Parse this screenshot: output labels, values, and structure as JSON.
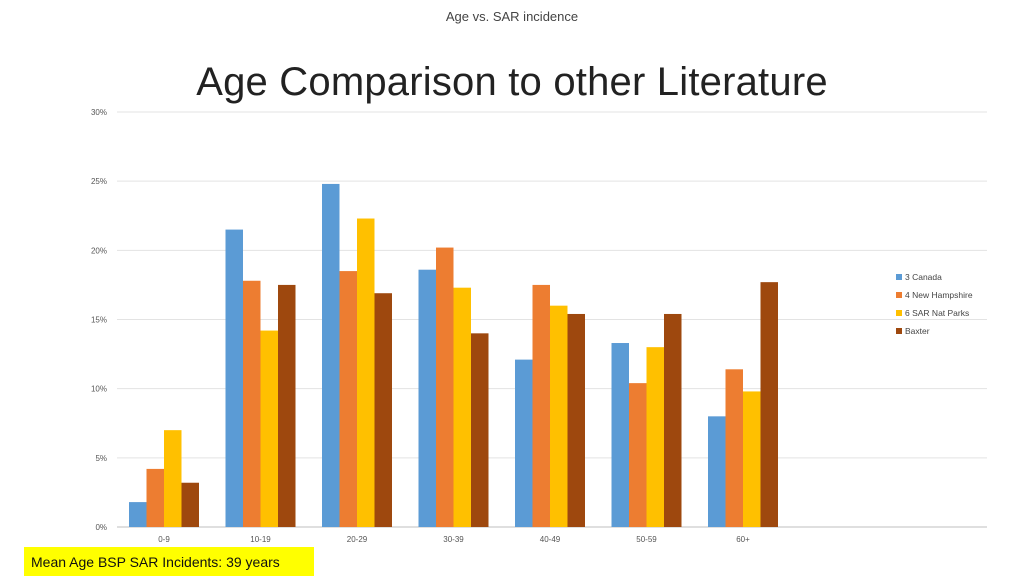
{
  "header": {
    "title": "Age vs. SAR incidence"
  },
  "slide": {
    "title": "Age Comparison to other Literature"
  },
  "footer": {
    "note": "Mean Age BSP SAR Incidents:  39 years"
  },
  "chart_data": {
    "type": "bar",
    "categories": [
      "0-9",
      "10-19",
      "20-29",
      "30-39",
      "40-49",
      "50-59",
      "60+"
    ],
    "series": [
      {
        "name": "3 Canada",
        "color": "#5b9bd5",
        "values": [
          1.8,
          21.5,
          24.8,
          18.6,
          12.1,
          13.3,
          8.0
        ]
      },
      {
        "name": "4 New Hampshire",
        "color": "#ed7d31",
        "values": [
          4.2,
          17.8,
          18.5,
          20.2,
          17.5,
          10.4,
          11.4
        ]
      },
      {
        "name": "6 SAR Nat Parks",
        "color": "#ffc000",
        "values": [
          7.0,
          14.2,
          22.3,
          17.3,
          16.0,
          13.0,
          9.8
        ]
      },
      {
        "name": "Baxter",
        "color": "#9e480e",
        "values": [
          3.2,
          17.5,
          16.9,
          14.0,
          15.4,
          15.4,
          17.7
        ]
      }
    ],
    "ylim": [
      0,
      30
    ],
    "yticks": [
      "0%",
      "5%",
      "10%",
      "15%",
      "20%",
      "25%",
      "30%"
    ],
    "grid": true,
    "legend": "right"
  }
}
